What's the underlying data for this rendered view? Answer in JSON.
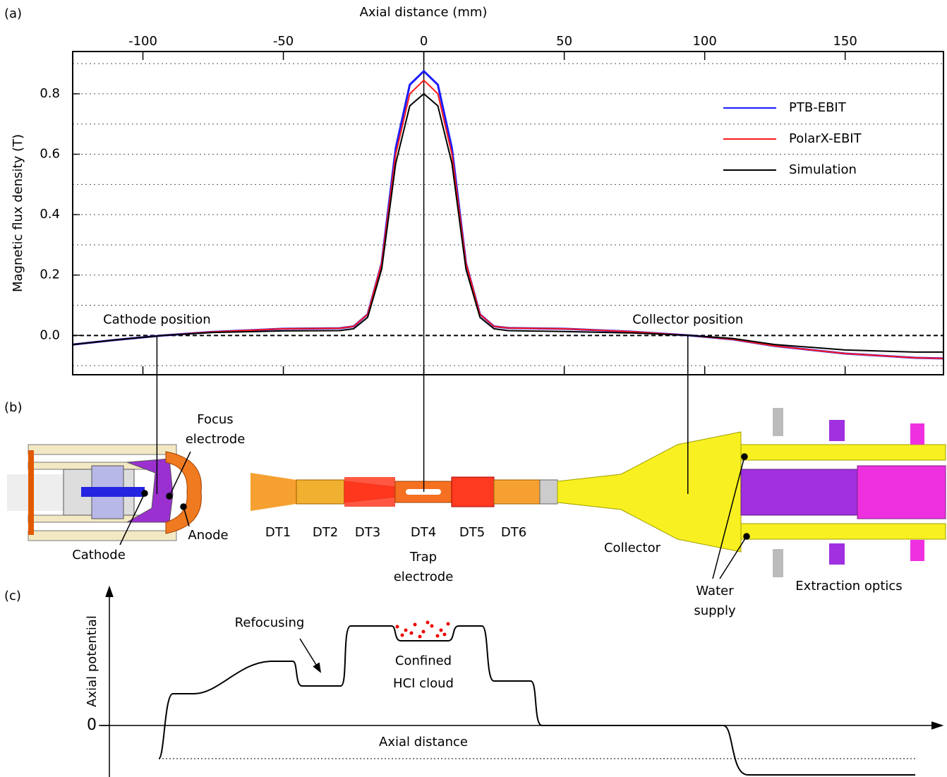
{
  "chart_data": {
    "type": "line",
    "panel_label": "(a)",
    "xlabel": "Axial distance (mm)",
    "ylabel": "Magnetic flux density (T)",
    "xlim": [
      -125,
      185
    ],
    "ylim": [
      -0.13,
      0.94
    ],
    "xticks": [
      -100,
      -50,
      0,
      50,
      100,
      150
    ],
    "yticks": [
      {
        "value": 0,
        "label": "0.0"
      },
      0.2,
      0.4,
      0.6,
      0.8
    ],
    "ygrid": [
      -0.1,
      0.1,
      0.3,
      0.5,
      0.7,
      0.9
    ],
    "grid": true,
    "legend": "upper right",
    "x": [
      -125,
      -110,
      -93,
      -75,
      -50,
      -30,
      -25,
      -20,
      -15,
      -10,
      -5,
      0,
      5,
      10,
      15,
      20,
      25,
      30,
      50,
      75,
      95,
      110,
      125,
      150,
      175,
      185
    ],
    "series": [
      {
        "name": "PTB-EBIT",
        "color": "#1a1aff",
        "values": [
          -0.03,
          -0.015,
          0,
          0.012,
          0.022,
          0.024,
          0.03,
          0.07,
          0.24,
          0.62,
          0.83,
          0.875,
          0.83,
          0.62,
          0.24,
          0.07,
          0.03,
          0.025,
          0.022,
          0.012,
          0,
          -0.013,
          -0.035,
          -0.06,
          -0.074,
          -0.076
        ]
      },
      {
        "name": "PolarX-EBIT",
        "color": "#ff1a1a",
        "values": [
          -0.03,
          -0.015,
          0,
          0.012,
          0.022,
          0.024,
          0.03,
          0.07,
          0.24,
          0.6,
          0.8,
          0.845,
          0.8,
          0.6,
          0.24,
          0.07,
          0.03,
          0.025,
          0.022,
          0.012,
          0,
          -0.013,
          -0.035,
          -0.06,
          -0.074,
          -0.076
        ]
      },
      {
        "name": "Simulation",
        "color": "#000000",
        "values": [
          -0.03,
          -0.015,
          0,
          0.01,
          0.015,
          0.016,
          0.022,
          0.06,
          0.22,
          0.57,
          0.76,
          0.8,
          0.76,
          0.57,
          0.22,
          0.06,
          0.022,
          0.016,
          0.013,
          0.008,
          0,
          -0.01,
          -0.03,
          -0.048,
          -0.055,
          -0.055
        ]
      }
    ],
    "annotations": [
      {
        "text": "Cathode position",
        "x": -95,
        "y": 0
      },
      {
        "text": "Collector position",
        "x": 94,
        "y": 0
      }
    ]
  },
  "setup": {
    "panel_label": "(b)",
    "focus_electrode": [
      "Focus",
      "electrode"
    ],
    "cathode": "Cathode",
    "anode": "Anode",
    "drift_tubes": [
      "DT1",
      "DT2",
      "DT3",
      "DT4",
      "DT5",
      "DT6"
    ],
    "trap_electrode": [
      "Trap",
      "electrode"
    ],
    "collector": "Collector",
    "water_supply": [
      "Water",
      "supply"
    ],
    "extraction_optics": "Extraction optics"
  },
  "potential": {
    "panel_label": "(c)",
    "ylabel": "Axial potential",
    "zero": "0",
    "xlabel": "Axial distance",
    "refocusing": "Refocusing",
    "cloud": [
      "Confined",
      "HCI cloud"
    ]
  }
}
